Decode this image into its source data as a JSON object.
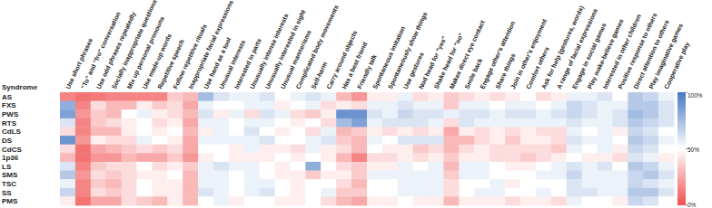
{
  "chart_data": {
    "type": "heatmap",
    "row_header": "Syndrome",
    "rows": [
      "AS",
      "FXS",
      "PWS",
      "RTS",
      "CdLS",
      "DS",
      "CdCS",
      "1p36",
      "LS",
      "SMS",
      "TSC",
      "SS",
      "PMS"
    ],
    "columns": [
      "Use short phrases",
      "“To” and “fro” conversation",
      "Use odd phrases repeatedly",
      "Socially inappropriate questions",
      "Mix up personal pronouns",
      "Use made-up words",
      "Repetitive speech",
      "Follow repetitive rituals",
      "Inappropriate facial expressions",
      "Use hand as a tool",
      "Unusual interests",
      "Interested in parts",
      "Unusually intense interests",
      "Unusually interested in sight",
      "Unusual mannerisms",
      "Complicated body movements",
      "Self-harm",
      "Carry around objects",
      "Has a best friend",
      "Friendly talk",
      "Spontaneous imitation",
      "Spontaneously show things",
      "Use gestures",
      "Nod head for \"yes\"",
      "Shake head for \"no\"",
      "Makes direct eye contact",
      "Smile back",
      "Engage other's attention",
      "Share things",
      "Join in other's enjoyment",
      "Comfort others",
      "Ask for help (gestures, words)",
      "A range of facial expressions",
      "Engage in social games",
      "Play make-believe games",
      "Interested in other children",
      "Positive response to others",
      "Direct attention to others",
      "Play imaginative games",
      "Cooperative play"
    ],
    "cells": [
      [
        15,
        10,
        12,
        15,
        15,
        15,
        15,
        35,
        30,
        75,
        60,
        55,
        55,
        60,
        50,
        55,
        60,
        55,
        30,
        20,
        45,
        45,
        55,
        40,
        45,
        35,
        40,
        45,
        40,
        45,
        50,
        40,
        45,
        55,
        55,
        60,
        50,
        70,
        65,
        55
      ],
      [
        80,
        15,
        40,
        30,
        30,
        45,
        35,
        40,
        25,
        55,
        50,
        50,
        55,
        55,
        45,
        50,
        55,
        40,
        45,
        40,
        55,
        55,
        60,
        55,
        55,
        35,
        55,
        55,
        50,
        55,
        55,
        50,
        55,
        65,
        60,
        55,
        55,
        70,
        70,
        60
      ],
      [
        85,
        20,
        35,
        30,
        50,
        55,
        45,
        40,
        30,
        60,
        45,
        55,
        40,
        60,
        55,
        40,
        35,
        45,
        90,
        90,
        60,
        55,
        65,
        60,
        60,
        55,
        60,
        60,
        55,
        60,
        60,
        55,
        60,
        65,
        60,
        55,
        60,
        75,
        70,
        60
      ],
      [
        60,
        15,
        35,
        40,
        45,
        50,
        40,
        45,
        25,
        55,
        55,
        50,
        55,
        55,
        50,
        45,
        50,
        40,
        75,
        85,
        55,
        60,
        60,
        60,
        55,
        40,
        60,
        55,
        55,
        55,
        55,
        55,
        55,
        60,
        55,
        55,
        60,
        70,
        65,
        60
      ],
      [
        40,
        15,
        30,
        30,
        45,
        50,
        45,
        50,
        30,
        45,
        55,
        50,
        60,
        50,
        45,
        50,
        40,
        55,
        30,
        35,
        45,
        40,
        45,
        40,
        45,
        25,
        45,
        40,
        45,
        40,
        45,
        40,
        40,
        55,
        50,
        55,
        45,
        65,
        60,
        50
      ],
      [
        90,
        20,
        45,
        40,
        40,
        55,
        50,
        45,
        25,
        55,
        55,
        55,
        55,
        60,
        50,
        50,
        55,
        60,
        35,
        30,
        55,
        50,
        60,
        60,
        60,
        30,
        30,
        40,
        45,
        35,
        45,
        45,
        40,
        60,
        55,
        55,
        50,
        70,
        65,
        55
      ],
      [
        40,
        10,
        25,
        30,
        35,
        40,
        35,
        40,
        25,
        50,
        50,
        45,
        55,
        45,
        45,
        40,
        55,
        45,
        40,
        30,
        50,
        45,
        45,
        35,
        40,
        30,
        40,
        45,
        40,
        40,
        40,
        40,
        35,
        55,
        50,
        55,
        45,
        65,
        60,
        50
      ],
      [
        30,
        10,
        20,
        20,
        30,
        25,
        25,
        35,
        20,
        45,
        50,
        45,
        45,
        45,
        50,
        45,
        50,
        45,
        30,
        15,
        40,
        40,
        45,
        40,
        45,
        35,
        45,
        45,
        40,
        40,
        35,
        40,
        45,
        50,
        45,
        45,
        40,
        60,
        55,
        45
      ],
      [
        60,
        15,
        35,
        40,
        40,
        50,
        40,
        45,
        35,
        55,
        60,
        55,
        55,
        50,
        45,
        50,
        80,
        50,
        40,
        35,
        45,
        45,
        55,
        50,
        55,
        30,
        55,
        55,
        50,
        45,
        45,
        50,
        55,
        60,
        55,
        60,
        50,
        70,
        65,
        55
      ],
      [
        70,
        20,
        40,
        35,
        40,
        45,
        45,
        50,
        30,
        55,
        55,
        50,
        55,
        50,
        45,
        45,
        35,
        45,
        45,
        35,
        55,
        55,
        55,
        55,
        55,
        35,
        55,
        55,
        50,
        50,
        50,
        55,
        55,
        65,
        55,
        55,
        55,
        65,
        70,
        60
      ],
      [
        55,
        15,
        35,
        30,
        40,
        50,
        45,
        45,
        30,
        55,
        55,
        50,
        55,
        55,
        50,
        45,
        50,
        50,
        40,
        30,
        50,
        50,
        55,
        55,
        55,
        40,
        50,
        50,
        55,
        45,
        50,
        50,
        50,
        60,
        55,
        55,
        55,
        65,
        60,
        55
      ],
      [
        65,
        15,
        40,
        35,
        40,
        50,
        45,
        45,
        30,
        60,
        55,
        50,
        55,
        60,
        50,
        45,
        50,
        55,
        35,
        35,
        50,
        50,
        55,
        55,
        55,
        40,
        50,
        55,
        55,
        50,
        50,
        55,
        50,
        60,
        60,
        55,
        55,
        70,
        70,
        60
      ],
      [
        45,
        10,
        25,
        25,
        40,
        35,
        30,
        45,
        30,
        50,
        55,
        45,
        50,
        50,
        45,
        45,
        50,
        40,
        30,
        25,
        45,
        45,
        50,
        45,
        45,
        30,
        45,
        45,
        45,
        40,
        45,
        45,
        40,
        55,
        50,
        50,
        45,
        65,
        60,
        50
      ]
    ],
    "color_range": [
      0,
      100
    ],
    "color_ticks": [
      {
        "value": 100,
        "label": "100%"
      },
      {
        "value": 50,
        "label": "50%"
      },
      {
        "value": 0,
        "label": "0%"
      }
    ]
  }
}
